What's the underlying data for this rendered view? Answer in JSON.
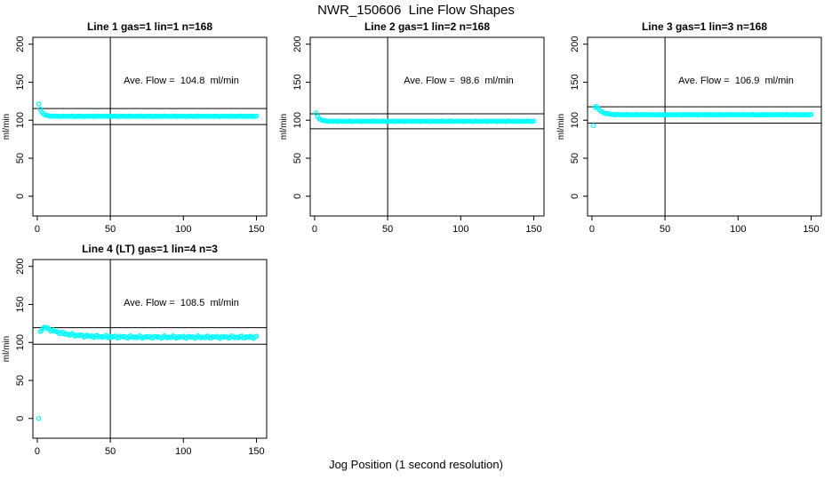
{
  "figure": {
    "title": "NWR_150606  Line Flow Shapes",
    "xlabel": "Jog Position (1 second resolution)",
    "point_color": "#00ffff",
    "line_color": "#000000",
    "background": "#ffffff"
  },
  "axes": {
    "x_ticks": [
      0,
      50,
      100,
      150
    ],
    "y_ticks": [
      0,
      50,
      100,
      150,
      200
    ],
    "x_domain": [
      -3,
      157
    ],
    "y_domain": [
      -26,
      209
    ],
    "ylabel": "ml/min"
  },
  "chart_data": [
    {
      "type": "scatter",
      "title": "Line 1 gas=1 lin=1 n=168",
      "annotation": "Ave. Flow =  104.8  ml/min",
      "ave_flow_ml_min": 104.8,
      "ref_lines": [
        115.3,
        94.3
      ],
      "vline_x": 50,
      "marker": "open-circle",
      "series": {
        "x_start": 1,
        "x_end": 150,
        "x0": 1,
        "start_value": 121,
        "peak": 121,
        "settle": 105.2,
        "tau": 2.0,
        "noise": 0.45
      },
      "outliers": []
    },
    {
      "type": "scatter",
      "title": "Line 2 gas=1 lin=2 n=168",
      "annotation": "Ave. Flow =  98.6  ml/min",
      "ave_flow_ml_min": 98.6,
      "ref_lines": [
        108.5,
        88.7
      ],
      "vline_x": 50,
      "marker": "open-circle",
      "series": {
        "x_start": 1,
        "x_end": 150,
        "x0": 1,
        "start_value": 109,
        "peak": 109,
        "settle": 98.6,
        "tau": 2.0,
        "noise": 0.45
      },
      "outliers": []
    },
    {
      "type": "scatter",
      "title": "Line 3 gas=1 lin=3 n=168",
      "annotation": "Ave. Flow =  106.9  ml/min",
      "ave_flow_ml_min": 106.9,
      "ref_lines": [
        117.6,
        96.2
      ],
      "vline_x": 50,
      "marker": "open-circle",
      "series": {
        "x_start": 2,
        "x_end": 150,
        "x0": 3,
        "start_value": 117,
        "peak": 118.5,
        "settle": 107.2,
        "tau": 3.5,
        "noise": 0.45
      },
      "outliers": [
        [
          1,
          93
        ]
      ]
    },
    {
      "type": "scatter",
      "title": "Line 4 (LT) gas=1 lin=4 n=3",
      "annotation": "Ave. Flow =  108.5  ml/min",
      "ave_flow_ml_min": 108.5,
      "ref_lines": [
        119.4,
        97.7
      ],
      "vline_x": 50,
      "marker": "open-circle",
      "series": {
        "x_start": 2,
        "x_end": 150,
        "x0": 5,
        "start_value": 115,
        "peak": 120,
        "settle": 107,
        "tau": 13,
        "noise": 1.8
      },
      "outliers": [
        [
          1,
          0
        ]
      ]
    }
  ]
}
